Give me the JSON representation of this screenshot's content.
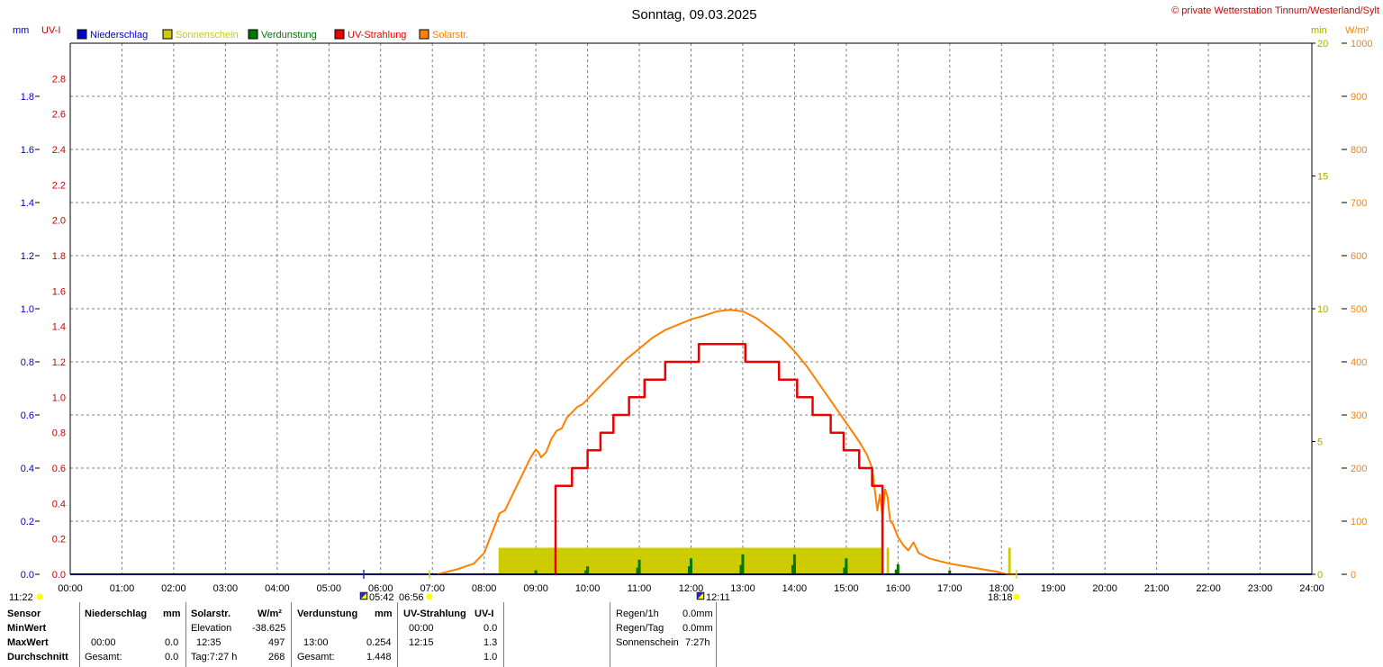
{
  "title": "Sonntag, 09.03.2025",
  "copyright": "© private Wetterstation Tinnum/Westerland/Sylt",
  "colors": {
    "niederschlag": "#0000cc",
    "sonnenschein": "#cccc00",
    "verdunstung": "#007700",
    "uv": "#ee0000",
    "solar": "#ff8000",
    "grid": "#808080",
    "axis": "#000000"
  },
  "legend": [
    {
      "label": "Niederschlag",
      "color": "#0000cc",
      "text_color": "#0000cc"
    },
    {
      "label": "Sonnenschein",
      "color": "#cccc00",
      "text_color": "#cccc00"
    },
    {
      "label": "Verdunstung",
      "color": "#007700",
      "text_color": "#007700"
    },
    {
      "label": "UV-Strahlung",
      "color": "#ee0000",
      "text_color": "#ee0000"
    },
    {
      "label": "Solarstr.",
      "color": "#ff8000",
      "text_color": "#ff8000"
    }
  ],
  "axis_units": {
    "mm": "mm",
    "uv": "UV-I",
    "min": "min",
    "wm2": "W/m²"
  },
  "chart_data": {
    "type": "line",
    "x_unit": "hour",
    "xlim": [
      0,
      24
    ],
    "x_ticks": [
      "00:00",
      "01:00",
      "02:00",
      "03:00",
      "04:00",
      "05:00",
      "06:00",
      "07:00",
      "08:00",
      "09:00",
      "10:00",
      "11:00",
      "12:00",
      "13:00",
      "14:00",
      "15:00",
      "16:00",
      "17:00",
      "18:00",
      "19:00",
      "20:00",
      "21:00",
      "22:00",
      "23:00",
      "24:00"
    ],
    "axes": {
      "mm": {
        "range": [
          0,
          2.0
        ],
        "ticks": [
          "0.0",
          "0.2",
          "0.4",
          "0.6",
          "0.8",
          "1.0",
          "1.2",
          "1.4",
          "1.6",
          "1.8"
        ]
      },
      "uv": {
        "range": [
          0,
          3.0
        ],
        "ticks": [
          "0.0",
          "0.2",
          "0.4",
          "0.6",
          "0.8",
          "1.0",
          "1.2",
          "1.4",
          "1.6",
          "1.8",
          "2.0",
          "2.2",
          "2.4",
          "2.6",
          "2.8"
        ]
      },
      "min": {
        "range": [
          0,
          20
        ],
        "ticks": [
          "0",
          "5",
          "10",
          "15",
          "20"
        ]
      },
      "wm2": {
        "range": [
          0,
          1000
        ],
        "ticks": [
          "0",
          "100",
          "200",
          "300",
          "400",
          "500",
          "600",
          "700",
          "800",
          "900",
          "1000"
        ]
      }
    },
    "series": [
      {
        "name": "Solarstr.",
        "axis": "wm2",
        "x": [
          7.1,
          7.5,
          7.8,
          8.0,
          8.2,
          8.3,
          8.4,
          8.5,
          8.7,
          8.9,
          9.0,
          9.05,
          9.1,
          9.2,
          9.3,
          9.4,
          9.5,
          9.6,
          9.7,
          9.8,
          9.9,
          10.0,
          10.25,
          10.5,
          10.75,
          11.0,
          11.25,
          11.5,
          11.75,
          12.0,
          12.25,
          12.5,
          12.75,
          13.0,
          13.25,
          13.5,
          13.75,
          14.0,
          14.25,
          14.5,
          14.75,
          15.0,
          15.25,
          15.4,
          15.5,
          15.55,
          15.6,
          15.65,
          15.7,
          15.75,
          15.8,
          15.85,
          15.9,
          16.0,
          16.1,
          16.2,
          16.3,
          16.4,
          16.5,
          16.6,
          16.8,
          17.0,
          17.3,
          17.6,
          17.9,
          18.1,
          18.2,
          18.3
        ],
        "y": [
          0,
          10,
          20,
          40,
          90,
          115,
          120,
          140,
          180,
          220,
          235,
          230,
          220,
          230,
          255,
          270,
          275,
          295,
          305,
          315,
          320,
          330,
          355,
          380,
          405,
          425,
          445,
          460,
          470,
          480,
          487,
          495,
          498,
          495,
          483,
          465,
          445,
          420,
          390,
          355,
          320,
          285,
          250,
          225,
          200,
          160,
          120,
          150,
          110,
          160,
          145,
          100,
          95,
          70,
          55,
          45,
          60,
          40,
          35,
          30,
          25,
          20,
          15,
          10,
          5,
          0,
          0,
          0
        ]
      },
      {
        "name": "UV-Strahlung",
        "axis": "uv",
        "x": [
          9.38,
          9.38,
          9.7,
          9.7,
          10.0,
          10.0,
          10.25,
          10.25,
          10.5,
          10.5,
          10.8,
          10.8,
          11.1,
          11.1,
          11.5,
          11.5,
          12.15,
          12.15,
          13.05,
          13.05,
          13.7,
          13.7,
          14.05,
          14.05,
          14.35,
          14.35,
          14.7,
          14.7,
          14.95,
          14.95,
          15.25,
          15.25,
          15.5,
          15.5,
          15.7,
          15.7
        ],
        "y": [
          0,
          0.5,
          0.5,
          0.6,
          0.6,
          0.7,
          0.7,
          0.8,
          0.8,
          0.9,
          0.9,
          1.0,
          1.0,
          1.1,
          1.1,
          1.2,
          1.2,
          1.3,
          1.3,
          1.2,
          1.2,
          1.1,
          1.1,
          1.0,
          1.0,
          0.9,
          0.9,
          0.8,
          0.8,
          0.7,
          0.7,
          0.6,
          0.6,
          0.5,
          0.5,
          0
        ]
      },
      {
        "name": "Sonnenschein",
        "axis": "min",
        "blocks": [
          {
            "from": 8.28,
            "to": 15.72,
            "value": 1
          },
          {
            "from": 15.78,
            "to": 15.83,
            "value": 1
          },
          {
            "from": 18.13,
            "to": 18.18,
            "value": 1
          }
        ]
      },
      {
        "name": "Verdunstung",
        "axis": "mm",
        "bars": [
          {
            "x": 9.0,
            "values": [
              0.015
            ]
          },
          {
            "x": 10.0,
            "values": [
              0.03,
              0.015
            ]
          },
          {
            "x": 11.0,
            "values": [
              0.055,
              0.025
            ]
          },
          {
            "x": 12.0,
            "values": [
              0.06,
              0.03
            ]
          },
          {
            "x": 13.0,
            "values": [
              0.075,
              0.035
            ]
          },
          {
            "x": 14.0,
            "values": [
              0.075,
              0.035
            ]
          },
          {
            "x": 15.0,
            "values": [
              0.06,
              0.025
            ]
          },
          {
            "x": 16.0,
            "values": [
              0.038,
              0.018
            ]
          },
          {
            "x": 17.0,
            "values": [
              0.015
            ]
          },
          {
            "x": 18.0,
            "values": [
              0.005
            ]
          }
        ]
      },
      {
        "name": "Niederschlag",
        "axis": "mm",
        "x": [
          0,
          24
        ],
        "y": [
          0,
          0
        ]
      }
    ]
  },
  "markers": {
    "moonrise": "11:22",
    "moon_a": "05:42",
    "sunrise": "06:56",
    "noon": "12:11",
    "sunset": "18:18"
  },
  "table": {
    "sensor": "Sensor",
    "minwert": "MinWert",
    "maxwert": "MaxWert",
    "durchschnitt": "Durchschnitt",
    "niederschlag": {
      "header": "Niederschlag",
      "unit": "mm",
      "max_time": "00:00",
      "max_val": "0.0",
      "avg_label": "Gesamt:",
      "avg_val": "0.0"
    },
    "solar": {
      "header": "Solarstr.",
      "unit": "W/m²",
      "min_label": "Elevation",
      "min_val": "-38.625",
      "max_time": "12:35",
      "max_val": "497",
      "avg_label": "Tag:7:27 h",
      "avg_val": "268"
    },
    "verdunstung": {
      "header": "Verdunstung",
      "unit": "mm",
      "max_time": "13:00",
      "max_val": "0.254",
      "avg_label": "Gesamt:",
      "avg_val": "1.448"
    },
    "uv": {
      "header": "UV-Strahlung",
      "unit": "UV-I",
      "min_time": "00:00",
      "min_val": "0.0",
      "max_time": "12:15",
      "max_val": "1.3",
      "avg_val": "1.0"
    },
    "regen": {
      "r1_label": "Regen/1h",
      "r1_val": "0.0mm",
      "rt_label": "Regen/Tag",
      "rt_val": "0.0mm",
      "ss_label": "Sonnenschein",
      "ss_val": "7:27h"
    }
  }
}
